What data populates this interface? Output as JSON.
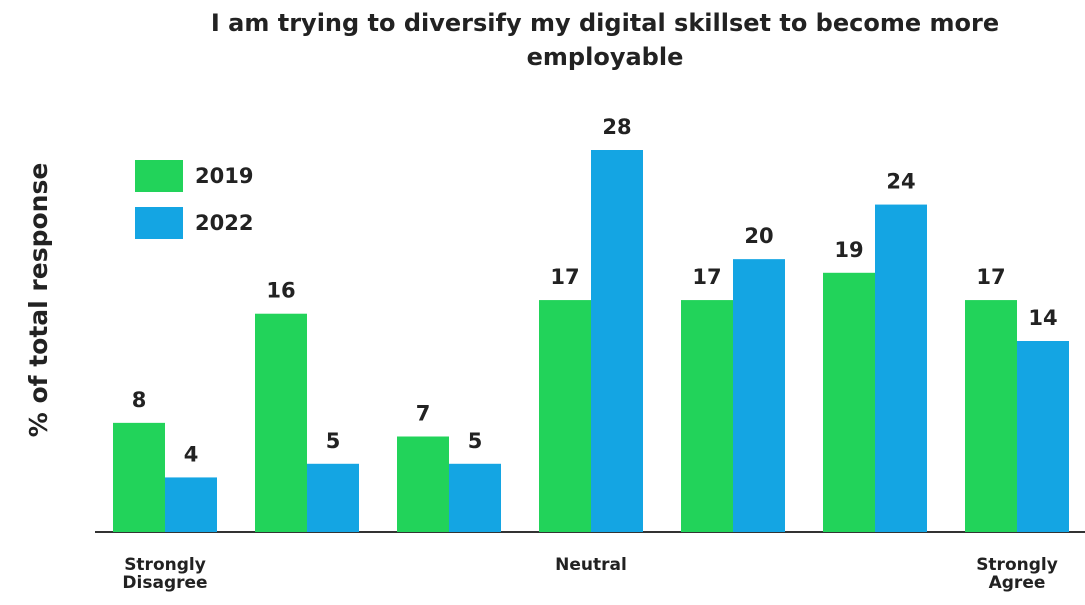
{
  "chart_data": {
    "type": "bar",
    "title": "I am trying to diversify my digital skillset to become more employable",
    "y_label": "% of total response",
    "categories": [
      "Strongly Disagree",
      null,
      null,
      "Neutral",
      null,
      null,
      "Strongly Agree"
    ],
    "series": [
      {
        "name": "2019",
        "color": "#22d35a",
        "values": [
          8,
          16,
          7,
          17,
          17,
          19,
          17
        ]
      },
      {
        "name": "2022",
        "color": "#14a5e3",
        "values": [
          4,
          5,
          5,
          28,
          20,
          24,
          14
        ]
      }
    ],
    "ylim": [
      0,
      28
    ],
    "legend": "upper left"
  }
}
